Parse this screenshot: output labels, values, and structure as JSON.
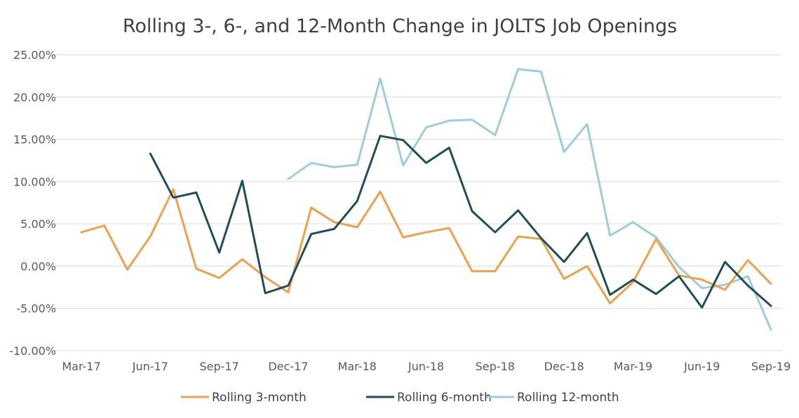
{
  "chart_data": {
    "type": "line",
    "title": "Rolling 3-, 6-, and 12-Month Change in JOLTS Job Openings",
    "xlabel": "",
    "ylabel": "",
    "ylim": [
      -10,
      25
    ],
    "y_ticks": [
      "-10.00%",
      "-5.00%",
      "0.00%",
      "5.00%",
      "10.00%",
      "15.00%",
      "20.00%",
      "25.00%"
    ],
    "x": [
      "Mar-17",
      "Apr-17",
      "May-17",
      "Jun-17",
      "Jul-17",
      "Aug-17",
      "Sep-17",
      "Oct-17",
      "Nov-17",
      "Dec-17",
      "Jan-18",
      "Feb-18",
      "Mar-18",
      "Apr-18",
      "May-18",
      "Jun-18",
      "Jul-18",
      "Aug-18",
      "Sep-18",
      "Oct-18",
      "Nov-18",
      "Dec-18",
      "Jan-19",
      "Feb-19",
      "Mar-19",
      "Apr-19",
      "May-19",
      "Jun-19",
      "Jul-19",
      "Aug-19",
      "Sep-19"
    ],
    "x_tick_labels": [
      "Mar-17",
      "Jun-17",
      "Sep-17",
      "Dec-17",
      "Mar-18",
      "Jun-18",
      "Sep-18",
      "Dec-18",
      "Mar-19",
      "Jun-19",
      "Sep-19"
    ],
    "grid": true,
    "legend": "bottom",
    "series": [
      {
        "name": "Rolling 3-month",
        "color": "#f0a04b",
        "values": [
          4.0,
          4.8,
          -0.4,
          3.5,
          9.1,
          -0.3,
          -1.4,
          0.8,
          -1.3,
          -3.1,
          6.9,
          5.2,
          4.6,
          8.8,
          3.4,
          4.0,
          4.5,
          -0.6,
          -0.6,
          3.5,
          3.2,
          -1.5,
          0.0,
          -4.4,
          -1.9,
          3.2,
          -1.1,
          -1.6,
          -2.8,
          0.7,
          -2.1
        ]
      },
      {
        "name": "Rolling 6-month",
        "color": "#1f4e5a",
        "values": [
          null,
          null,
          null,
          13.3,
          8.1,
          8.7,
          1.6,
          10.1,
          -3.2,
          -2.3,
          3.8,
          4.4,
          7.7,
          15.4,
          14.9,
          12.2,
          14.0,
          6.5,
          4.0,
          6.6,
          3.3,
          0.5,
          3.9,
          -3.4,
          -1.6,
          -3.3,
          -1.2,
          -4.9,
          0.5,
          -2.3,
          -4.7
        ]
      },
      {
        "name": "Rolling 12-month",
        "color": "#9dcdd8",
        "values": [
          null,
          null,
          null,
          null,
          null,
          null,
          null,
          null,
          null,
          10.3,
          12.2,
          11.7,
          12.0,
          22.2,
          11.9,
          16.4,
          17.2,
          17.3,
          15.5,
          23.3,
          23.0,
          13.5,
          16.8,
          3.6,
          5.2,
          3.4,
          -0.1,
          -2.6,
          -2.2,
          -1.2,
          -7.5
        ]
      }
    ]
  }
}
